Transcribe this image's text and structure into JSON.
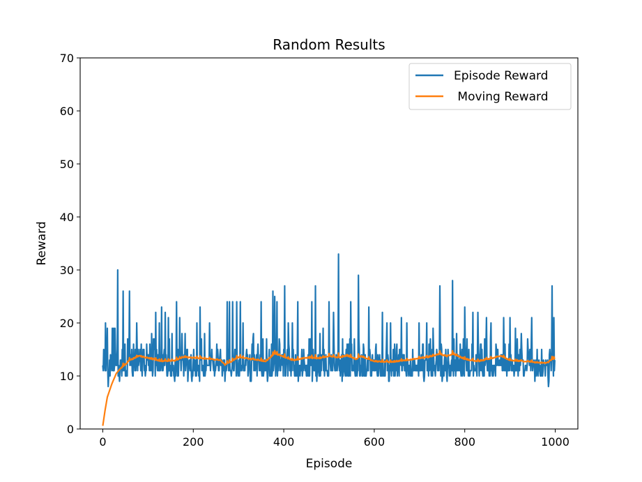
{
  "chart_data": {
    "type": "line",
    "title": "Random Results",
    "xlabel": "Episode",
    "ylabel": "Reward",
    "xlim": [
      -50,
      1050
    ],
    "ylim": [
      0,
      70
    ],
    "xticks": [
      0,
      200,
      400,
      600,
      800,
      1000
    ],
    "yticks": [
      0,
      10,
      20,
      30,
      40,
      50,
      60,
      70
    ],
    "grid": false,
    "legend": "top-right",
    "episodes": 1000,
    "series": [
      {
        "name": "Episode Reward",
        "color": "#1f77b4",
        "range": [
          8,
          33
        ],
        "typical_range": [
          9,
          24
        ],
        "mean": 12.9,
        "peaks": [
          [
            3,
            14
          ],
          [
            6,
            20
          ],
          [
            10,
            19
          ],
          [
            12,
            8
          ],
          [
            17,
            14
          ],
          [
            21,
            19
          ],
          [
            24,
            19
          ],
          [
            27,
            19
          ],
          [
            33,
            30
          ],
          [
            45,
            26
          ],
          [
            55,
            17
          ],
          [
            59,
            26
          ],
          [
            66,
            10
          ],
          [
            75,
            20
          ],
          [
            85,
            16
          ],
          [
            97,
            16
          ],
          [
            108,
            18
          ],
          [
            117,
            22
          ],
          [
            125,
            20
          ],
          [
            130,
            23
          ],
          [
            138,
            22
          ],
          [
            145,
            21
          ],
          [
            153,
            18
          ],
          [
            163,
            24
          ],
          [
            170,
            21
          ],
          [
            175,
            18
          ],
          [
            182,
            18
          ],
          [
            190,
            12
          ],
          [
            200,
            13
          ],
          [
            208,
            20
          ],
          [
            215,
            23
          ],
          [
            225,
            18
          ],
          [
            236,
            20
          ],
          [
            246,
            13
          ],
          [
            260,
            15
          ],
          [
            275,
            24
          ],
          [
            280,
            24
          ],
          [
            287,
            24
          ],
          [
            296,
            24
          ],
          [
            304,
            24
          ],
          [
            310,
            20
          ],
          [
            318,
            15
          ],
          [
            333,
            18
          ],
          [
            343,
            16
          ],
          [
            350,
            24
          ],
          [
            362,
            17
          ],
          [
            373,
            16
          ],
          [
            376,
            26
          ],
          [
            380,
            25
          ],
          [
            385,
            24
          ],
          [
            402,
            27
          ],
          [
            410,
            20
          ],
          [
            419,
            20
          ],
          [
            431,
            24
          ],
          [
            440,
            15
          ],
          [
            456,
            17
          ],
          [
            462,
            24
          ],
          [
            470,
            27
          ],
          [
            480,
            18
          ],
          [
            487,
            19
          ],
          [
            500,
            24
          ],
          [
            510,
            22
          ],
          [
            521,
            33
          ],
          [
            530,
            17
          ],
          [
            548,
            24
          ],
          [
            555,
            13
          ],
          [
            565,
            29
          ],
          [
            572,
            14
          ],
          [
            588,
            23
          ],
          [
            604,
            16
          ],
          [
            612,
            14
          ],
          [
            618,
            22
          ],
          [
            628,
            20
          ],
          [
            636,
            20
          ],
          [
            645,
            16
          ],
          [
            660,
            21
          ],
          [
            672,
            20
          ],
          [
            685,
            15
          ],
          [
            699,
            20
          ],
          [
            708,
            16
          ],
          [
            716,
            20
          ],
          [
            724,
            17
          ],
          [
            730,
            19
          ],
          [
            745,
            27
          ],
          [
            756,
            14
          ],
          [
            773,
            28
          ],
          [
            782,
            18
          ],
          [
            790,
            16
          ],
          [
            800,
            23
          ],
          [
            818,
            22
          ],
          [
            829,
            22
          ],
          [
            838,
            15
          ],
          [
            848,
            21
          ],
          [
            858,
            20
          ],
          [
            869,
            16
          ],
          [
            886,
            21
          ],
          [
            900,
            21
          ],
          [
            912,
            19
          ],
          [
            925,
            18
          ],
          [
            940,
            15
          ],
          [
            948,
            21
          ],
          [
            960,
            15
          ],
          [
            977,
            12
          ],
          [
            985,
            8
          ],
          [
            993,
            27
          ],
          [
            997,
            21
          ]
        ],
        "seed": 1234567
      },
      {
        "name": " Moving Reward",
        "color": "#ff7f0e",
        "start": 0.6,
        "alpha": 0.05,
        "level": [
          [
            0,
            0.6
          ],
          [
            5,
            3.5
          ],
          [
            10,
            6.0
          ],
          [
            20,
            8.5
          ],
          [
            30,
            10.5
          ],
          [
            40,
            11.5
          ],
          [
            60,
            13.0
          ],
          [
            80,
            13.8
          ],
          [
            100,
            13.4
          ],
          [
            130,
            12.8
          ],
          [
            160,
            13.0
          ],
          [
            180,
            13.6
          ],
          [
            200,
            13.5
          ],
          [
            230,
            13.3
          ],
          [
            260,
            13.0
          ],
          [
            270,
            12.2
          ],
          [
            285,
            12.8
          ],
          [
            300,
            13.6
          ],
          [
            330,
            13.2
          ],
          [
            360,
            12.8
          ],
          [
            380,
            14.3
          ],
          [
            395,
            13.8
          ],
          [
            420,
            13.0
          ],
          [
            450,
            13.5
          ],
          [
            480,
            13.4
          ],
          [
            500,
            13.8
          ],
          [
            520,
            13.5
          ],
          [
            540,
            13.9
          ],
          [
            560,
            13.2
          ],
          [
            570,
            13.8
          ],
          [
            600,
            12.8
          ],
          [
            640,
            12.7
          ],
          [
            670,
            13.0
          ],
          [
            700,
            13.4
          ],
          [
            720,
            13.6
          ],
          [
            745,
            14.2
          ],
          [
            760,
            13.8
          ],
          [
            775,
            14.2
          ],
          [
            800,
            13.2
          ],
          [
            830,
            12.8
          ],
          [
            850,
            13.2
          ],
          [
            880,
            13.8
          ],
          [
            900,
            13.0
          ],
          [
            930,
            12.8
          ],
          [
            960,
            12.6
          ],
          [
            980,
            12.5
          ],
          [
            999,
            13.4
          ]
        ]
      }
    ]
  }
}
